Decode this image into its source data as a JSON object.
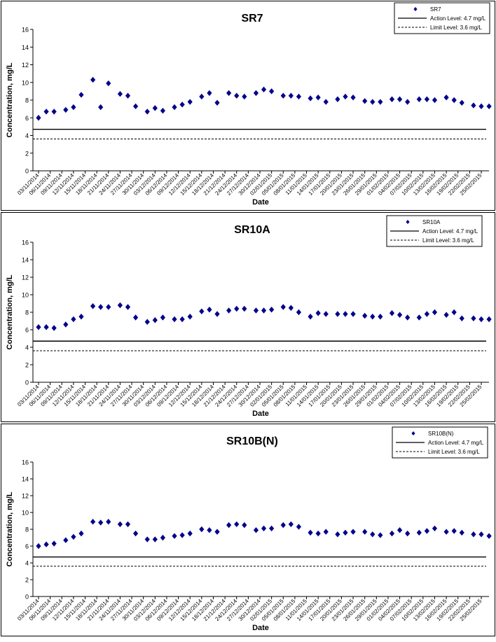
{
  "colors": {
    "marker": "#00008B",
    "action_line": "#000000",
    "limit_line": "#000000",
    "axis": "#000000",
    "panel_border": "#000000"
  },
  "chart_data": [
    {
      "type": "scatter",
      "title": "SR7",
      "xlabel": "Date",
      "ylabel": "Concentration, mg/L",
      "ylim": [
        0,
        16
      ],
      "yticks": [
        0,
        2,
        4,
        6,
        8,
        10,
        12,
        14,
        16
      ],
      "grid": false,
      "legend_position": "top-right",
      "x_tick_labels": [
        "03/11/2014",
        "06/11/2014",
        "09/11/2014",
        "12/11/2014",
        "15/11/2014",
        "18/11/2014",
        "21/11/2014",
        "24/11/2014",
        "27/11/2014",
        "30/11/2014",
        "03/12/2014",
        "06/12/2014",
        "09/12/2014",
        "12/12/2014",
        "15/12/2014",
        "18/12/2014",
        "21/12/2014",
        "24/12/2014",
        "27/12/2014",
        "30/12/2014",
        "02/01/2015",
        "05/01/2015",
        "08/01/2015",
        "11/01/2015",
        "14/01/2015",
        "17/01/2015",
        "20/01/2015",
        "23/01/2015",
        "26/01/2015",
        "29/01/2015",
        "01/02/2015",
        "04/02/2015",
        "07/02/2015",
        "10/02/2015",
        "13/02/2015",
        "16/02/2015",
        "19/02/2015",
        "22/02/2015",
        "25/02/2015"
      ],
      "series": [
        {
          "name": "SR7",
          "x": [
            "03/11/2014",
            "05/11/2014",
            "07/11/2014",
            "10/11/2014",
            "12/11/2014",
            "14/11/2014",
            "17/11/2014",
            "19/11/2014",
            "21/11/2014",
            "24/11/2014",
            "26/11/2014",
            "28/11/2014",
            "01/12/2014",
            "03/12/2014",
            "05/12/2014",
            "08/12/2014",
            "10/12/2014",
            "12/12/2014",
            "15/12/2014",
            "17/12/2014",
            "19/12/2014",
            "22/12/2014",
            "24/12/2014",
            "26/12/2014",
            "29/12/2014",
            "31/12/2014",
            "02/01/2015",
            "05/01/2015",
            "07/01/2015",
            "09/01/2015",
            "12/01/2015",
            "14/01/2015",
            "16/01/2015",
            "19/01/2015",
            "21/01/2015",
            "23/01/2015",
            "26/01/2015",
            "28/01/2015",
            "30/01/2015",
            "02/02/2015",
            "04/02/2015",
            "06/02/2015",
            "09/02/2015",
            "11/02/2015",
            "13/02/2015",
            "16/02/2015",
            "18/02/2015",
            "20/02/2015",
            "23/02/2015",
            "25/02/2015",
            "27/02/2015"
          ],
          "values": [
            6.0,
            6.7,
            6.7,
            6.9,
            7.2,
            8.6,
            10.3,
            7.2,
            9.9,
            8.7,
            8.5,
            7.3,
            6.7,
            7.1,
            6.8,
            7.2,
            7.5,
            7.8,
            8.4,
            8.8,
            7.7,
            8.8,
            8.5,
            8.4,
            8.8,
            9.2,
            9.0,
            8.5,
            8.5,
            8.4,
            8.2,
            8.3,
            7.8,
            8.1,
            8.4,
            8.3,
            7.9,
            7.8,
            7.8,
            8.1,
            8.1,
            7.8,
            8.1,
            8.1,
            8.0,
            8.3,
            8.0,
            7.7,
            7.4,
            7.3,
            7.3
          ]
        }
      ],
      "reference_lines": [
        {
          "name": "Action Level: 4.7 mg/L",
          "value": 4.7,
          "style": "solid"
        },
        {
          "name": "Limit Level: 3.6 mg/L",
          "value": 3.6,
          "style": "dashed"
        }
      ]
    },
    {
      "type": "scatter",
      "title": "SR10A",
      "xlabel": "Date",
      "ylabel": "Concentration, mg/L",
      "ylim": [
        0,
        16
      ],
      "yticks": [
        0,
        2,
        4,
        6,
        8,
        10,
        12,
        14,
        16
      ],
      "grid": false,
      "legend_position": "top-right",
      "x_tick_labels": [
        "03/11/2014",
        "06/11/2014",
        "09/11/2014",
        "12/11/2014",
        "15/11/2014",
        "18/11/2014",
        "21/11/2014",
        "24/11/2014",
        "27/11/2014",
        "30/11/2014",
        "03/12/2014",
        "06/12/2014",
        "09/12/2014",
        "12/12/2014",
        "15/12/2014",
        "18/12/2014",
        "21/12/2014",
        "24/12/2014",
        "27/12/2014",
        "30/12/2014",
        "02/01/2015",
        "05/01/2015",
        "08/01/2015",
        "11/01/2015",
        "14/01/2015",
        "17/01/2015",
        "20/01/2015",
        "23/01/2015",
        "26/01/2015",
        "29/01/2015",
        "01/02/2015",
        "04/02/2015",
        "07/02/2015",
        "10/02/2015",
        "13/02/2015",
        "16/02/2015",
        "19/02/2015",
        "22/02/2015",
        "25/02/2015"
      ],
      "series": [
        {
          "name": "SR10A",
          "x": [
            "03/11/2014",
            "05/11/2014",
            "07/11/2014",
            "10/11/2014",
            "12/11/2014",
            "14/11/2014",
            "17/11/2014",
            "19/11/2014",
            "21/11/2014",
            "24/11/2014",
            "26/11/2014",
            "28/11/2014",
            "01/12/2014",
            "03/12/2014",
            "05/12/2014",
            "08/12/2014",
            "10/12/2014",
            "12/12/2014",
            "15/12/2014",
            "17/12/2014",
            "19/12/2014",
            "22/12/2014",
            "24/12/2014",
            "26/12/2014",
            "29/12/2014",
            "31/12/2014",
            "02/01/2015",
            "05/01/2015",
            "07/01/2015",
            "09/01/2015",
            "12/01/2015",
            "14/01/2015",
            "16/01/2015",
            "19/01/2015",
            "21/01/2015",
            "23/01/2015",
            "26/01/2015",
            "28/01/2015",
            "30/01/2015",
            "02/02/2015",
            "04/02/2015",
            "06/02/2015",
            "09/02/2015",
            "11/02/2015",
            "13/02/2015",
            "16/02/2015",
            "18/02/2015",
            "20/02/2015",
            "23/02/2015",
            "25/02/2015",
            "27/02/2015"
          ],
          "values": [
            6.3,
            6.3,
            6.2,
            6.6,
            7.2,
            7.5,
            8.7,
            8.6,
            8.6,
            8.8,
            8.6,
            7.4,
            6.9,
            7.1,
            7.4,
            7.2,
            7.2,
            7.5,
            8.1,
            8.3,
            7.8,
            8.2,
            8.4,
            8.4,
            8.2,
            8.2,
            8.3,
            8.6,
            8.5,
            8.0,
            7.5,
            7.9,
            7.8,
            7.8,
            7.8,
            7.8,
            7.6,
            7.5,
            7.5,
            7.9,
            7.7,
            7.4,
            7.4,
            7.8,
            8.0,
            7.7,
            8.0,
            7.3,
            7.3,
            7.2,
            7.2
          ]
        }
      ],
      "reference_lines": [
        {
          "name": "Action Level: 4.7 mg/L",
          "value": 4.7,
          "style": "solid"
        },
        {
          "name": "Limit Level: 3.6 mg/L",
          "value": 3.6,
          "style": "dashed"
        }
      ]
    },
    {
      "type": "scatter",
      "title": "SR10B(N)",
      "xlabel": "Date",
      "ylabel": "Concentration, mg/L",
      "ylim": [
        0,
        16
      ],
      "yticks": [
        0,
        2,
        4,
        6,
        8,
        10,
        12,
        14,
        16
      ],
      "grid": false,
      "legend_position": "top-right",
      "x_tick_labels": [
        "03/11/2014",
        "06/11/2014",
        "09/11/2014",
        "12/11/2014",
        "15/11/2014",
        "18/11/2014",
        "21/11/2014",
        "24/11/2014",
        "27/11/2014",
        "30/11/2014",
        "03/12/2014",
        "06/12/2014",
        "09/12/2014",
        "12/12/2014",
        "15/12/2014",
        "18/12/2014",
        "21/12/2014",
        "24/12/2014",
        "27/12/2014",
        "30/12/2014",
        "02/01/2015",
        "05/01/2015",
        "08/01/2015",
        "11/01/2015",
        "14/01/2015",
        "17/01/2015",
        "20/01/2015",
        "23/01/2015",
        "26/01/2015",
        "29/01/2015",
        "01/02/2015",
        "04/02/2015",
        "07/02/2015",
        "10/02/2015",
        "13/02/2015",
        "16/02/2015",
        "19/02/2015",
        "22/02/2015",
        "25/02/2015"
      ],
      "series": [
        {
          "name": "SR10B(N)",
          "x": [
            "03/11/2014",
            "05/11/2014",
            "07/11/2014",
            "10/11/2014",
            "12/11/2014",
            "14/11/2014",
            "17/11/2014",
            "19/11/2014",
            "21/11/2014",
            "24/11/2014",
            "26/11/2014",
            "28/11/2014",
            "01/12/2014",
            "03/12/2014",
            "05/12/2014",
            "08/12/2014",
            "10/12/2014",
            "12/12/2014",
            "15/12/2014",
            "17/12/2014",
            "19/12/2014",
            "22/12/2014",
            "24/12/2014",
            "26/12/2014",
            "29/12/2014",
            "31/12/2014",
            "02/01/2015",
            "05/01/2015",
            "07/01/2015",
            "09/01/2015",
            "12/01/2015",
            "14/01/2015",
            "16/01/2015",
            "19/01/2015",
            "21/01/2015",
            "23/01/2015",
            "26/01/2015",
            "28/01/2015",
            "30/01/2015",
            "02/02/2015",
            "04/02/2015",
            "06/02/2015",
            "09/02/2015",
            "11/02/2015",
            "13/02/2015",
            "16/02/2015",
            "18/02/2015",
            "20/02/2015",
            "23/02/2015",
            "25/02/2015",
            "27/02/2015"
          ],
          "values": [
            6.0,
            6.2,
            6.3,
            6.7,
            7.1,
            7.5,
            8.9,
            8.8,
            8.9,
            8.6,
            8.6,
            7.5,
            6.8,
            6.8,
            7.0,
            7.2,
            7.3,
            7.5,
            8.0,
            7.9,
            7.7,
            8.5,
            8.6,
            8.5,
            7.9,
            8.1,
            8.1,
            8.5,
            8.6,
            8.3,
            7.6,
            7.5,
            7.7,
            7.4,
            7.6,
            7.7,
            7.7,
            7.4,
            7.3,
            7.5,
            7.9,
            7.5,
            7.6,
            7.8,
            8.1,
            7.7,
            7.8,
            7.6,
            7.4,
            7.4,
            7.2
          ]
        }
      ],
      "reference_lines": [
        {
          "name": "Action Level: 4.7 mg/L",
          "value": 4.7,
          "style": "solid"
        },
        {
          "name": "Limit Level: 3.6 mg/L",
          "value": 3.6,
          "style": "dashed"
        }
      ]
    }
  ]
}
